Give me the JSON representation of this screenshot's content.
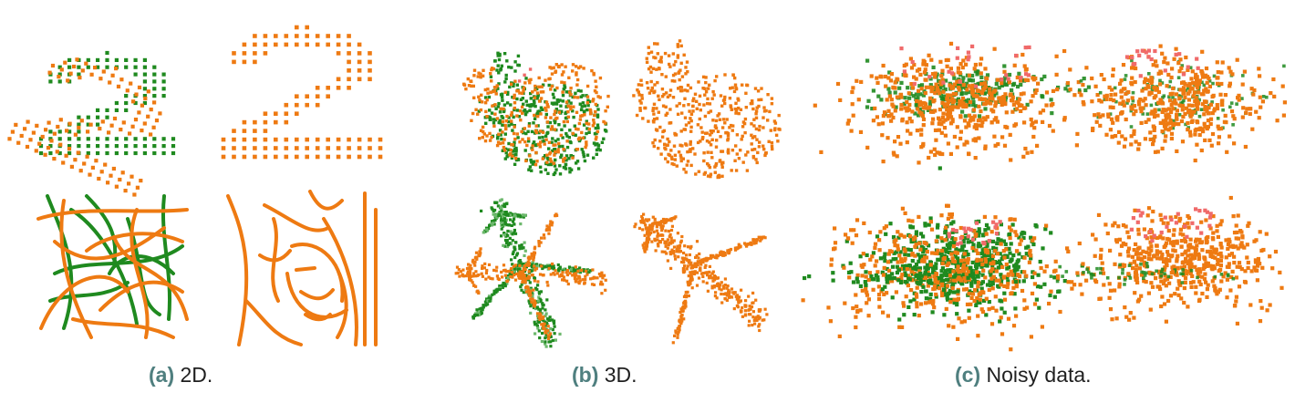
{
  "colors": {
    "source": "#1f8a1f",
    "source_light": "#6db86d",
    "target": "#ee7a12",
    "outlier": "#f06a6a",
    "caption_tag": "#4f7f7f",
    "caption_text": "#1f1f1f"
  },
  "captions": [
    {
      "tag": "(a)",
      "text": "2D."
    },
    {
      "tag": "(b)",
      "text": "3D."
    },
    {
      "tag": "(c)",
      "text": "Noisy data."
    }
  ],
  "panels": {
    "a": {
      "name": "2D",
      "rows": [
        "digit-two",
        "line-drawing"
      ]
    },
    "b": {
      "name": "3D",
      "rows": [
        "bunny",
        "airplane"
      ]
    },
    "c": {
      "name": "Noisy data",
      "rows": [
        "noisy-blob-1",
        "noisy-blob-2"
      ]
    }
  }
}
